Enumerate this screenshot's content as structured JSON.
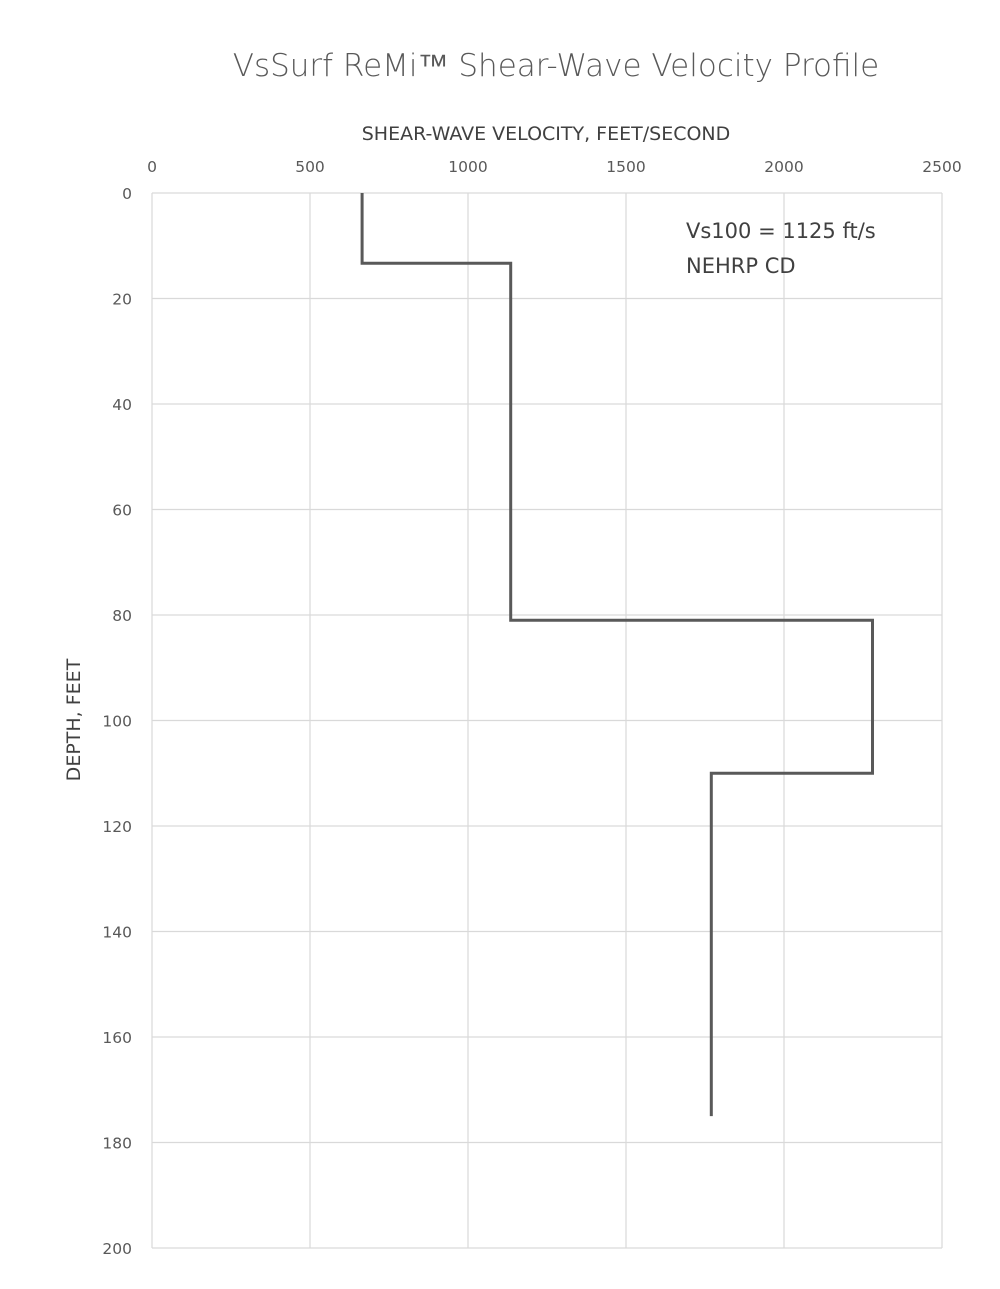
{
  "chart_data": {
    "type": "line",
    "title": "VsSurf ReMi™ Shear-Wave Velocity Profile",
    "xlabel": "SHEAR-WAVE VELOCITY, FEET/SECOND",
    "ylabel": "DEPTH, FEET",
    "xlim": [
      0,
      2500
    ],
    "ylim": [
      0,
      200
    ],
    "y_inverted": true,
    "x_axis_position": "top",
    "x_ticks": [
      "0",
      "500",
      "1000",
      "1500",
      "2000",
      "2500"
    ],
    "y_ticks": [
      "0",
      "20",
      "40",
      "60",
      "80",
      "100",
      "120",
      "140",
      "160",
      "180",
      "200"
    ],
    "grid": true,
    "legend": "none",
    "line_color": "#595959",
    "grid_color": "#d9d9d9",
    "series": [
      {
        "points": [
          {
            "x": 665,
            "y": 0
          },
          {
            "x": 665,
            "y": 13.3
          },
          {
            "x": 1135,
            "y": 13.3
          },
          {
            "x": 1135,
            "y": 81
          },
          {
            "x": 2280,
            "y": 81
          },
          {
            "x": 2280,
            "y": 110
          },
          {
            "x": 1770,
            "y": 110
          },
          {
            "x": 1770,
            "y": 175
          }
        ]
      }
    ],
    "annotations": [
      "Vs100 = 1125 ft/s",
      "NEHRP CD"
    ]
  }
}
